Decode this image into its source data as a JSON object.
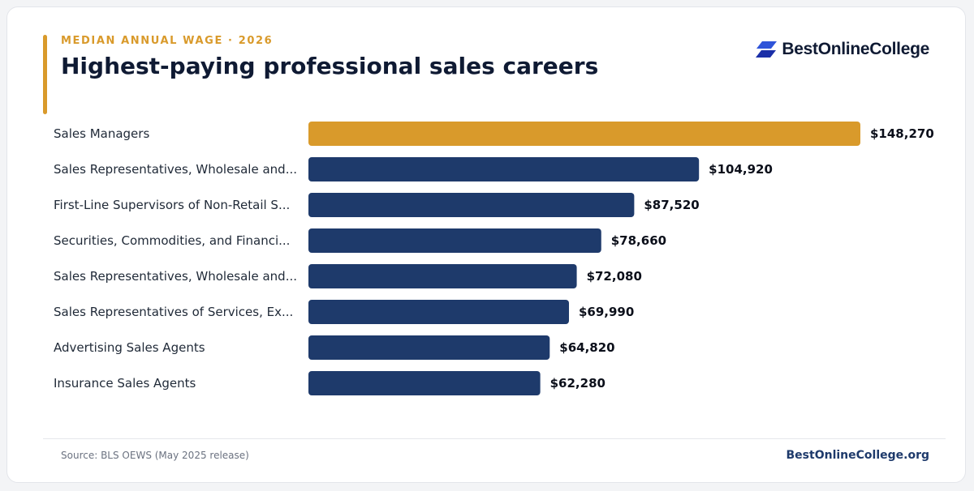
{
  "header": {
    "eyebrow": "MEDIAN ANNUAL WAGE · 2026",
    "title": "Highest-paying professional sales careers"
  },
  "brand": {
    "name": "BestOnlineCollege",
    "logo_icon": "parallelogram-stack-icon",
    "logo_colors": [
      "#2f54d9",
      "#1b2fa8"
    ]
  },
  "colors": {
    "highlight_bar": "#d99a2b",
    "bar": "#1e3a6b",
    "accent": "#d99a2b"
  },
  "chart_data": {
    "type": "bar",
    "orientation": "horizontal",
    "categories": [
      "Sales Managers",
      "Sales Representatives, Wholesale and...",
      "First-Line Supervisors of Non-Retail S...",
      "Securities, Commodities, and Financi...",
      "Sales Representatives, Wholesale and...",
      "Sales Representatives of Services, Ex...",
      "Advertising Sales Agents",
      "Insurance Sales Agents"
    ],
    "values": [
      148270,
      104920,
      87520,
      78660,
      72080,
      69990,
      64820,
      62280
    ],
    "value_labels": [
      "$148,270",
      "$104,920",
      "$87,520",
      "$78,660",
      "$72,080",
      "$69,990",
      "$64,820",
      "$62,280"
    ],
    "highlight_index": 0,
    "xlim": [
      0,
      148270
    ],
    "grid": false,
    "legend": "none"
  },
  "footer": {
    "source": "Source: BLS OEWS (May 2025 release)",
    "site": "BestOnlineCollege.org"
  }
}
